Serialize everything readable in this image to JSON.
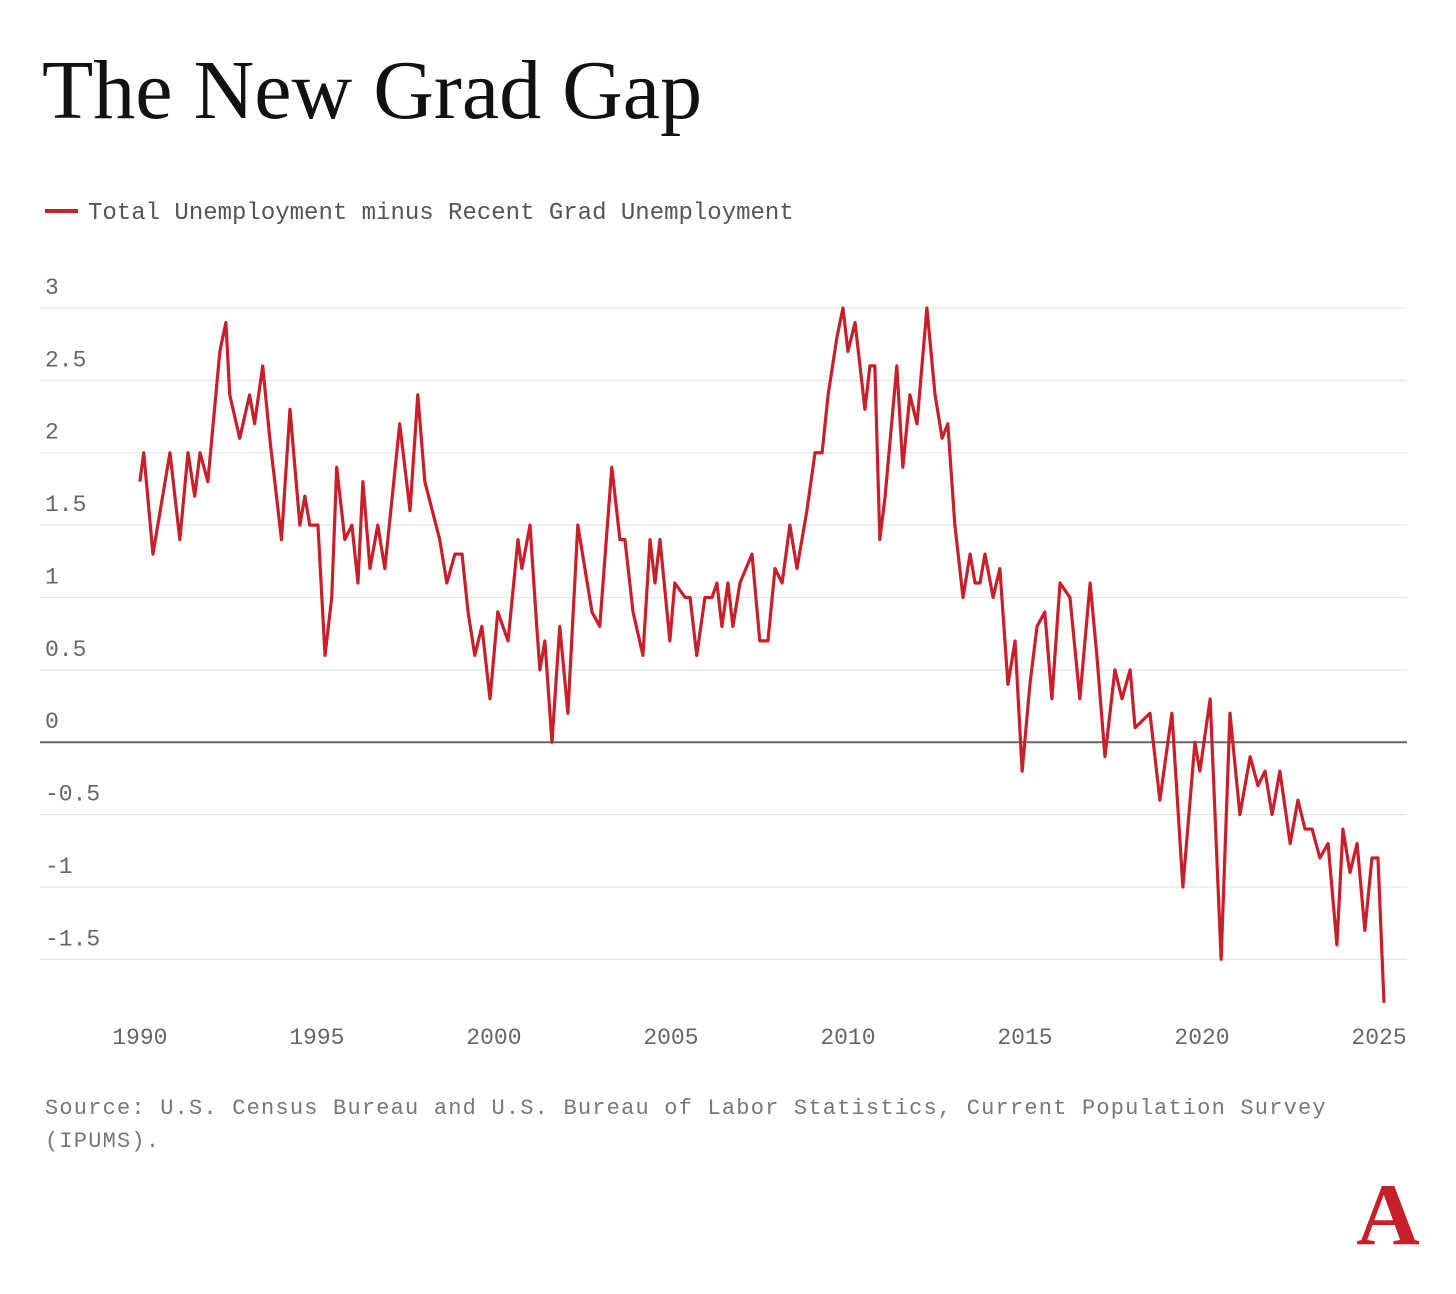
{
  "chart_data": {
    "type": "line",
    "title": "The New Grad Gap",
    "source": "Source: U.S. Census Bureau and U.S. Bureau of Labor Statistics, Current Population Survey (IPUMS).",
    "logo": "A",
    "x": [
      1990.0,
      1990.11,
      1990.37,
      1990.85,
      1991.13,
      1991.36,
      1991.55,
      1991.7,
      1991.92,
      1992.26,
      1992.43,
      1992.54,
      1992.82,
      1993.1,
      1993.24,
      1993.47,
      1993.67,
      1994.0,
      1994.24,
      1994.52,
      1994.66,
      1994.8,
      1995.03,
      1995.23,
      1995.42,
      1995.56,
      1995.79,
      1995.99,
      1996.16,
      1996.3,
      1996.5,
      1996.72,
      1996.92,
      1997.34,
      1997.63,
      1997.85,
      1998.05,
      1998.47,
      1998.67,
      1998.9,
      1999.1,
      1999.27,
      1999.46,
      1999.66,
      1999.89,
      2000.11,
      2000.4,
      2000.68,
      2000.79,
      2001.02,
      2001.21,
      2001.3,
      2001.44,
      2001.64,
      2001.86,
      2002.09,
      2002.37,
      2002.57,
      2002.77,
      2002.99,
      2003.33,
      2003.56,
      2003.7,
      2003.93,
      2004.21,
      2004.41,
      2004.55,
      2004.69,
      2004.97,
      2005.11,
      2005.4,
      2005.54,
      2005.73,
      2005.96,
      2006.16,
      2006.3,
      2006.44,
      2006.61,
      2006.75,
      2006.95,
      2007.29,
      2007.51,
      2007.74,
      2007.94,
      2008.14,
      2008.36,
      2008.56,
      2008.84,
      2009.07,
      2009.27,
      2009.44,
      2009.69,
      2009.86,
      2010.0,
      2010.2,
      2010.48,
      2010.62,
      2010.76,
      2010.9,
      2011.05,
      2011.38,
      2011.55,
      2011.75,
      2011.95,
      2012.23,
      2012.46,
      2012.66,
      2012.82,
      2013.02,
      2013.25,
      2013.45,
      2013.59,
      2013.73,
      2013.87,
      2014.1,
      2014.29,
      2014.52,
      2014.72,
      2014.92,
      2015.14,
      2015.34,
      2015.56,
      2015.76,
      2015.99,
      2016.27,
      2016.55,
      2016.84,
      2017.03,
      2017.26,
      2017.54,
      2017.74,
      2017.97,
      2018.11,
      2018.53,
      2018.81,
      2019.15,
      2019.46,
      2019.8,
      2019.94,
      2020.23,
      2020.54,
      2020.79,
      2021.07,
      2021.36,
      2021.58,
      2021.78,
      2021.98,
      2022.2,
      2022.49,
      2022.71,
      2022.91,
      2023.11,
      2023.33,
      2023.56,
      2023.81,
      2023.98,
      2024.18,
      2024.38,
      2024.6,
      2024.8,
      2024.97,
      2025.14
    ],
    "series": [
      {
        "name": "Total Unemployment minus Recent Grad Unemployment",
        "color": "#c8202a",
        "values": [
          1.8,
          2.0,
          1.3,
          2.0,
          1.4,
          2.0,
          1.7,
          2.0,
          1.8,
          2.7,
          2.9,
          2.4,
          2.1,
          2.4,
          2.2,
          2.6,
          2.1,
          1.4,
          2.3,
          1.5,
          1.7,
          1.5,
          1.5,
          0.6,
          1.0,
          1.9,
          1.4,
          1.5,
          1.1,
          1.8,
          1.2,
          1.5,
          1.2,
          2.2,
          1.6,
          2.4,
          1.8,
          1.4,
          1.1,
          1.3,
          1.3,
          0.9,
          0.6,
          0.8,
          0.3,
          0.9,
          0.7,
          1.4,
          1.2,
          1.5,
          0.8,
          0.5,
          0.7,
          0.0,
          0.8,
          0.2,
          1.5,
          1.2,
          0.9,
          0.8,
          1.9,
          1.4,
          1.4,
          0.9,
          0.6,
          1.4,
          1.1,
          1.4,
          0.7,
          1.1,
          1.0,
          1.0,
          0.6,
          1.0,
          1.0,
          1.1,
          0.8,
          1.1,
          0.8,
          1.1,
          1.3,
          0.7,
          0.7,
          1.2,
          1.1,
          1.5,
          1.2,
          1.6,
          2.0,
          2.0,
          2.4,
          2.8,
          3.0,
          2.7,
          2.9,
          2.3,
          2.6,
          2.6,
          1.4,
          1.7,
          2.6,
          1.9,
          2.4,
          2.2,
          3.0,
          2.4,
          2.1,
          2.2,
          1.5,
          1.0,
          1.3,
          1.1,
          1.1,
          1.3,
          1.0,
          1.2,
          0.4,
          0.7,
          -0.2,
          0.4,
          0.8,
          0.9,
          0.3,
          1.1,
          1.0,
          0.3,
          1.1,
          0.6,
          -0.1,
          0.5,
          0.3,
          0.5,
          0.1,
          0.2,
          -0.4,
          0.2,
          -1.0,
          0.0,
          -0.2,
          0.3,
          -1.5,
          0.2,
          -0.5,
          -0.1,
          -0.3,
          -0.2,
          -0.5,
          -0.2,
          -0.7,
          -0.4,
          -0.6,
          -0.6,
          -0.8,
          -0.7,
          -1.4,
          -0.6,
          -0.9,
          -0.7,
          -1.3,
          -0.8,
          -0.8,
          -1.8
        ]
      }
    ],
    "xlim": [
      1987.18,
      2025.79
    ],
    "xticks": [
      1990,
      1995,
      2000,
      2005,
      2010,
      2015,
      2020,
      2025
    ],
    "ylim": [
      -1.85,
      3
    ],
    "yticks": [
      3,
      2.5,
      2,
      1.5,
      1,
      0.5,
      0,
      -0.5,
      -1,
      -1.5
    ],
    "grid": true
  }
}
